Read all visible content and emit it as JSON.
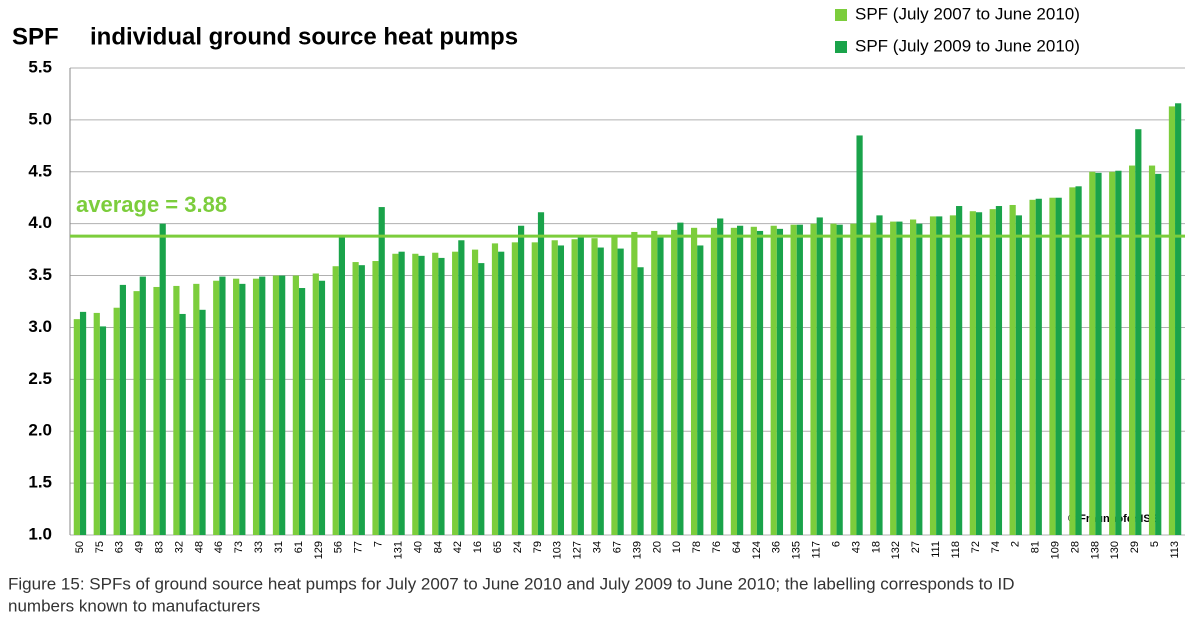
{
  "chart_data": {
    "type": "bar",
    "title": "individual ground source heat pumps",
    "y_label": "SPF",
    "caption": [
      "Figure 15: SPFs of ground source heat pumps for July 2007 to June 2010 and July 2009 to June 2010; the labelling corresponds to ID",
      "numbers known to manufacturers"
    ],
    "credit": "© Fraunhofer ISE",
    "average": {
      "value": 3.88,
      "label": "average = 3.88"
    },
    "average_color": "#7ccd3c",
    "categories": [
      "50",
      "75",
      "63",
      "49",
      "83",
      "32",
      "48",
      "46",
      "73",
      "33",
      "31",
      "61",
      "129",
      "56",
      "77",
      "7",
      "131",
      "40",
      "84",
      "42",
      "16",
      "65",
      "24",
      "79",
      "103",
      "127",
      "34",
      "67",
      "139",
      "20",
      "10",
      "78",
      "76",
      "64",
      "124",
      "36",
      "135",
      "117",
      "6",
      "43",
      "18",
      "132",
      "27",
      "111",
      "118",
      "72",
      "74",
      "2",
      "81",
      "109",
      "28",
      "138",
      "130",
      "29",
      "5",
      "113"
    ],
    "series": [
      {
        "name": "SPF (July 2007 to June 2010)",
        "color": "#7ccd3c",
        "values": [
          3.08,
          3.14,
          3.19,
          3.35,
          3.39,
          3.4,
          3.42,
          3.45,
          3.47,
          3.47,
          3.5,
          3.5,
          3.52,
          3.59,
          3.63,
          3.64,
          3.71,
          3.71,
          3.72,
          3.73,
          3.75,
          3.81,
          3.82,
          3.82,
          3.84,
          3.85,
          3.86,
          3.88,
          3.92,
          3.93,
          3.94,
          3.96,
          3.96,
          3.96,
          3.97,
          3.98,
          3.99,
          4.0,
          4.0,
          4.0,
          4.01,
          4.02,
          4.04,
          4.07,
          4.08,
          4.12,
          4.14,
          4.18,
          4.23,
          4.25,
          4.35,
          4.5,
          4.5,
          4.56,
          4.56,
          5.13
        ]
      },
      {
        "name": "SPF (July 2009 to June 2010)",
        "color": "#1aa34a",
        "values": [
          3.15,
          3.01,
          3.41,
          3.49,
          4.0,
          3.13,
          3.17,
          3.49,
          3.42,
          3.49,
          3.5,
          3.38,
          3.45,
          3.89,
          3.6,
          4.16,
          3.73,
          3.69,
          3.67,
          3.84,
          3.62,
          3.73,
          3.98,
          4.11,
          3.79,
          3.88,
          3.77,
          3.76,
          3.58,
          3.87,
          4.01,
          3.79,
          4.05,
          3.98,
          3.93,
          3.95,
          3.99,
          4.06,
          3.99,
          4.85,
          4.08,
          4.02,
          4.0,
          4.07,
          4.17,
          4.11,
          4.17,
          4.08,
          4.24,
          4.25,
          4.36,
          4.49,
          4.51,
          4.91,
          4.48,
          5.16
        ]
      }
    ],
    "ylim": [
      1.0,
      5.5
    ],
    "yticks": [
      {
        "value": 1,
        "label": "1.0"
      },
      1.5,
      {
        "value": 2,
        "label": "2.0"
      },
      2.5,
      {
        "value": 3,
        "label": "3.0"
      },
      3.5,
      {
        "value": 4,
        "label": "4.0"
      },
      4.5,
      {
        "value": 5,
        "label": "5.0"
      },
      5.5
    ],
    "grid": true
  }
}
